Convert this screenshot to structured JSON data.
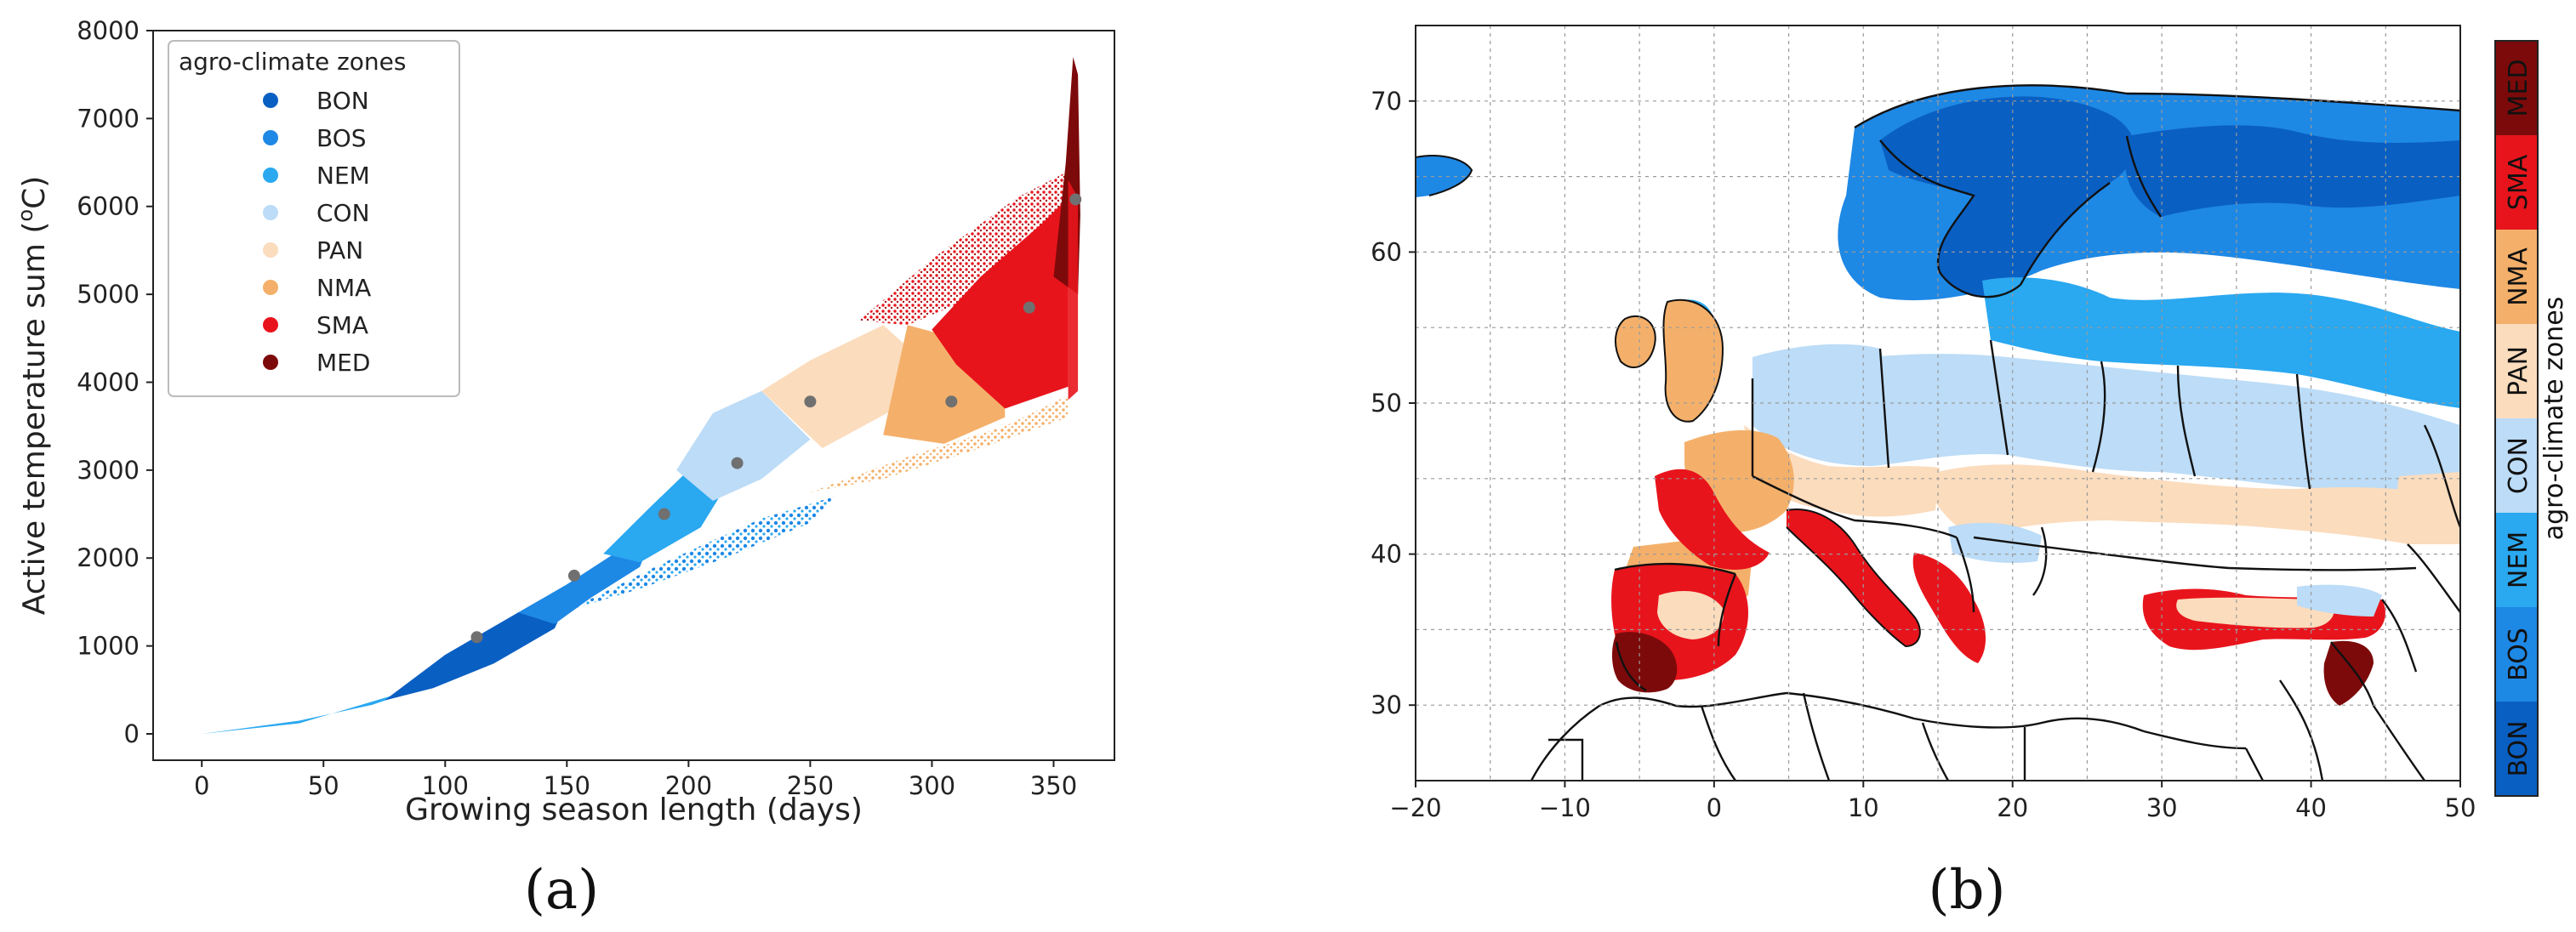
{
  "chart_data": [
    {
      "type": "scatter",
      "panel_label": "(a)",
      "xlabel": "Growing season length (days)",
      "ylabel_main": "Active temperature sum (",
      "ylabel_sup": "o",
      "ylabel_end": "C)",
      "xlim": [
        -20,
        375
      ],
      "ylim": [
        -300,
        8000
      ],
      "xticks": [
        0,
        50,
        100,
        150,
        200,
        250,
        300,
        350
      ],
      "yticks": [
        0,
        1000,
        2000,
        3000,
        4000,
        5000,
        6000,
        7000,
        8000
      ],
      "legend_title": "agro-climate zones",
      "legend_position": "top-left",
      "zones": [
        {
          "name": "BON",
          "color": "#0a5fc2"
        },
        {
          "name": "BOS",
          "color": "#1e88e5"
        },
        {
          "name": "NEM",
          "color": "#2aa8f0"
        },
        {
          "name": "CON",
          "color": "#bcdcf7"
        },
        {
          "name": "PAN",
          "color": "#fbdcbd"
        },
        {
          "name": "NMA",
          "color": "#f4b06a"
        },
        {
          "name": "SMA",
          "color": "#e8141c"
        },
        {
          "name": "MED",
          "color": "#7d0a0a"
        }
      ],
      "medians": [
        {
          "zone": "BON",
          "x": 113,
          "y": 1100
        },
        {
          "zone": "BOS",
          "x": 153,
          "y": 1800
        },
        {
          "zone": "NEM",
          "x": 190,
          "y": 2500
        },
        {
          "zone": "CON",
          "x": 220,
          "y": 3080
        },
        {
          "zone": "PAN",
          "x": 250,
          "y": 3780
        },
        {
          "zone": "NMA",
          "x": 308,
          "y": 3780
        },
        {
          "zone": "SMA",
          "x": 340,
          "y": 4850
        },
        {
          "zone": "MED",
          "x": 359,
          "y": 6080
        }
      ],
      "median_color": "#707070"
    },
    {
      "type": "heatmap",
      "subtype": "map",
      "panel_label": "(b)",
      "xlim": [
        -20,
        50
      ],
      "ylim": [
        25,
        75
      ],
      "xticks": [
        -20,
        -10,
        0,
        10,
        20,
        30,
        40,
        50
      ],
      "yticks": [
        30,
        40,
        50,
        60,
        70
      ],
      "colorbar_label": "agro-climate zones",
      "colorbar_position": "right",
      "ocean_color": "#ffffff"
    }
  ]
}
